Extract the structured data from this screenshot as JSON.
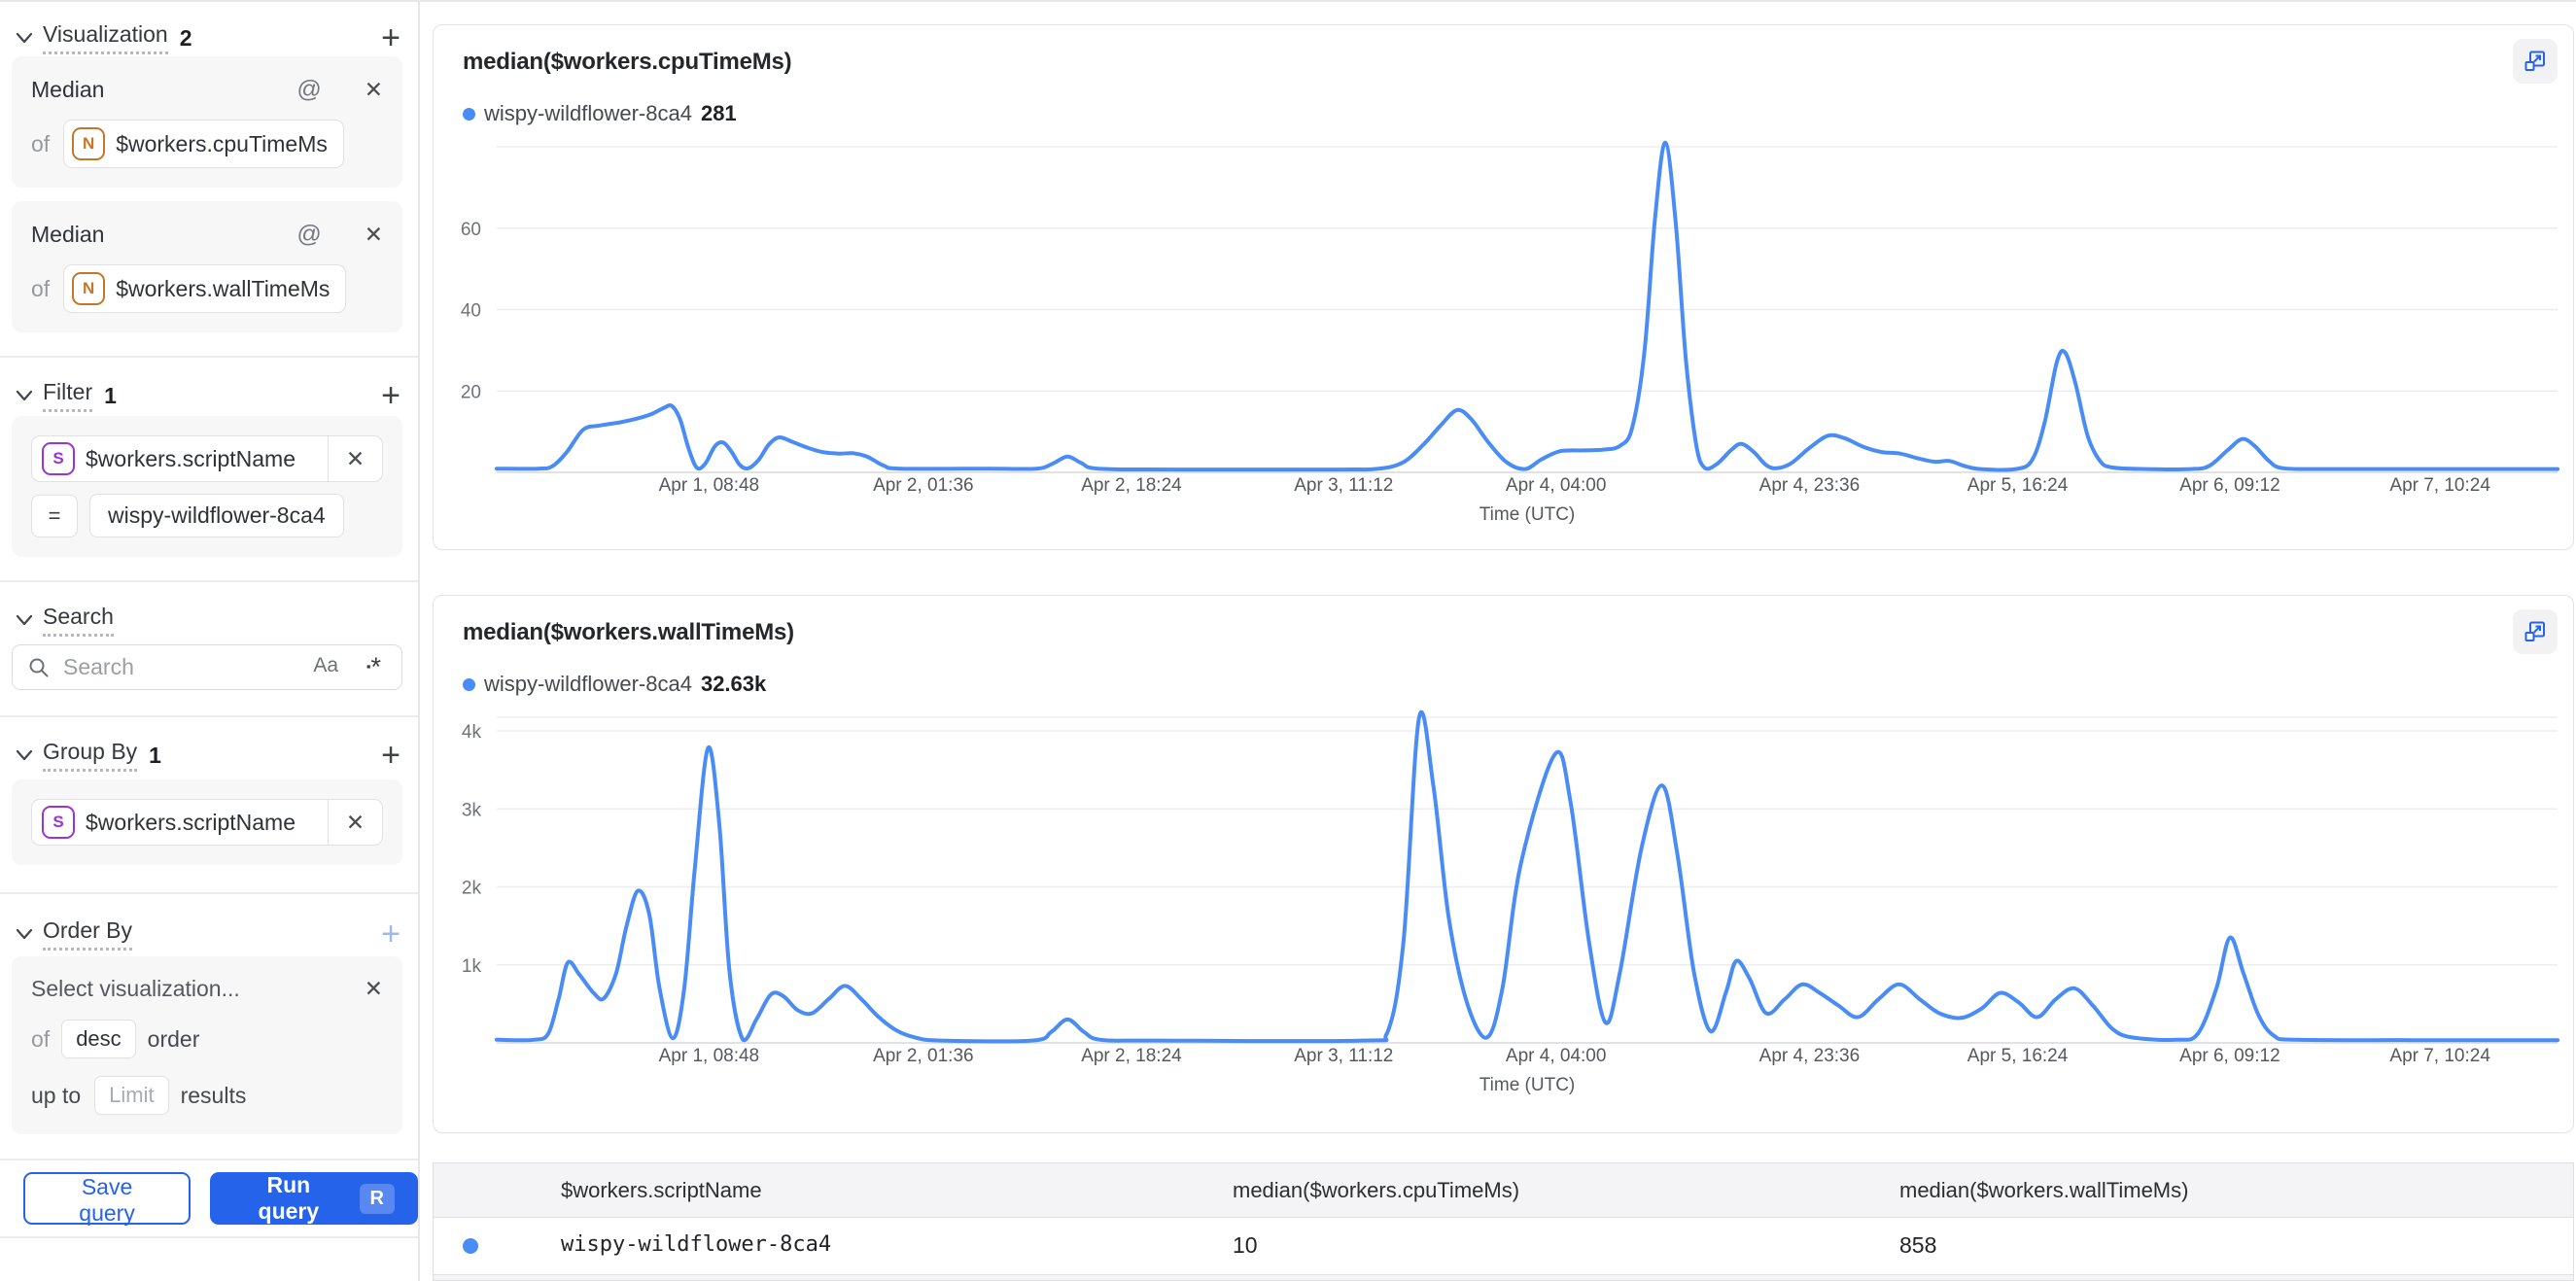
{
  "icons": {
    "plus": "+",
    "close": "✕",
    "at": "@",
    "equals": "="
  },
  "colors": {
    "accent_blue": "#2563eb",
    "line_blue": "#4a8cf6",
    "grid": "#ededef",
    "baseline": "#e2e2e5"
  },
  "sidebar": {
    "visualization": {
      "title": "Visualization",
      "count": "2",
      "cards": [
        {
          "name": "Median",
          "of": "of",
          "badge": "N",
          "field": "$workers.cpuTimeMs"
        },
        {
          "name": "Median",
          "of": "of",
          "badge": "N",
          "field": "$workers.wallTimeMs"
        }
      ]
    },
    "filter": {
      "title": "Filter",
      "count": "1",
      "badge": "S",
      "field": "$workers.scriptName",
      "operator": "=",
      "value": "wispy-wildflower-8ca4"
    },
    "search": {
      "title": "Search",
      "placeholder": "Search",
      "match_case": "Aa",
      "regex_square": "▪",
      "regex_star": "*"
    },
    "group_by": {
      "title": "Group By",
      "count": "1",
      "badge": "S",
      "field": "$workers.scriptName"
    },
    "order_by": {
      "title": "Order By",
      "placeholder": "Select visualization...",
      "of": "of",
      "direction": "desc",
      "order_word": "order",
      "up_to": "up to",
      "limit_placeholder": "Limit",
      "results_word": "results"
    },
    "footer": {
      "save": "Save query",
      "run": "Run query",
      "shortcut": "R"
    }
  },
  "chart_data": [
    {
      "type": "line",
      "title": "median($workers.cpuTimeMs)",
      "legend": {
        "series": "wispy-wildflower-8ca4",
        "value": "281"
      },
      "xlabel": "Time (UTC)",
      "ytop": 80,
      "yticks": [
        {
          "v": 20,
          "label": "20"
        },
        {
          "v": 40,
          "label": "40"
        },
        {
          "v": 60,
          "label": "60"
        }
      ],
      "xticks": [
        {
          "f": 0.103,
          "label": "Apr 1, 08:48"
        },
        {
          "f": 0.207,
          "label": "Apr 2, 01:36"
        },
        {
          "f": 0.308,
          "label": "Apr 2, 18:24"
        },
        {
          "f": 0.411,
          "label": "Apr 3, 11:12"
        },
        {
          "f": 0.514,
          "label": "Apr 4, 04:00"
        },
        {
          "f": 0.637,
          "label": "Apr 4, 23:36"
        },
        {
          "f": 0.738,
          "label": "Apr 5, 16:24"
        },
        {
          "f": 0.841,
          "label": "Apr 6, 09:12"
        },
        {
          "f": 0.943,
          "label": "Apr 7, 10:24"
        }
      ],
      "points": [
        [
          0,
          0.9
        ],
        [
          0.02,
          0.9
        ],
        [
          0.027,
          1.5
        ],
        [
          0.034,
          5
        ],
        [
          0.042,
          10.5
        ],
        [
          0.05,
          11.5
        ],
        [
          0.06,
          12.3
        ],
        [
          0.068,
          13.2
        ],
        [
          0.075,
          14.3
        ],
        [
          0.081,
          15.8
        ],
        [
          0.085,
          16.3
        ],
        [
          0.089,
          13
        ],
        [
          0.093,
          6
        ],
        [
          0.097,
          1.2
        ],
        [
          0.101,
          2
        ],
        [
          0.106,
          6.5
        ],
        [
          0.11,
          7.3
        ],
        [
          0.114,
          5
        ],
        [
          0.118,
          1.8
        ],
        [
          0.122,
          1
        ],
        [
          0.127,
          3
        ],
        [
          0.132,
          6.8
        ],
        [
          0.137,
          8.6
        ],
        [
          0.143,
          7.6
        ],
        [
          0.15,
          6.2
        ],
        [
          0.158,
          5
        ],
        [
          0.166,
          4.6
        ],
        [
          0.173,
          4.7
        ],
        [
          0.18,
          3.8
        ],
        [
          0.188,
          1.6
        ],
        [
          0.196,
          0.9
        ],
        [
          0.24,
          0.9
        ],
        [
          0.262,
          0.9
        ],
        [
          0.27,
          2.2
        ],
        [
          0.277,
          3.9
        ],
        [
          0.284,
          2.2
        ],
        [
          0.292,
          0.9
        ],
        [
          0.33,
          0.7
        ],
        [
          0.41,
          0.7
        ],
        [
          0.428,
          0.9
        ],
        [
          0.44,
          2.5
        ],
        [
          0.45,
          7
        ],
        [
          0.458,
          11.5
        ],
        [
          0.466,
          15.3
        ],
        [
          0.473,
          13
        ],
        [
          0.481,
          7.5
        ],
        [
          0.49,
          2.5
        ],
        [
          0.499,
          0.8
        ],
        [
          0.507,
          3.2
        ],
        [
          0.516,
          5.2
        ],
        [
          0.527,
          5.4
        ],
        [
          0.537,
          5.6
        ],
        [
          0.545,
          6.5
        ],
        [
          0.551,
          11
        ],
        [
          0.557,
          30
        ],
        [
          0.562,
          62
        ],
        [
          0.567,
          81
        ],
        [
          0.572,
          62
        ],
        [
          0.577,
          28
        ],
        [
          0.582,
          7
        ],
        [
          0.586,
          1.2
        ],
        [
          0.592,
          2
        ],
        [
          0.599,
          5.5
        ],
        [
          0.604,
          7
        ],
        [
          0.61,
          5
        ],
        [
          0.616,
          1.8
        ],
        [
          0.621,
          1
        ],
        [
          0.628,
          2.2
        ],
        [
          0.637,
          6
        ],
        [
          0.646,
          9
        ],
        [
          0.654,
          8.4
        ],
        [
          0.663,
          6.3
        ],
        [
          0.672,
          5
        ],
        [
          0.681,
          4.6
        ],
        [
          0.69,
          3.4
        ],
        [
          0.698,
          2.6
        ],
        [
          0.705,
          2.8
        ],
        [
          0.712,
          1.6
        ],
        [
          0.72,
          0.8
        ],
        [
          0.737,
          0.8
        ],
        [
          0.745,
          3
        ],
        [
          0.751,
          12
        ],
        [
          0.757,
          27
        ],
        [
          0.761,
          29.5
        ],
        [
          0.766,
          22
        ],
        [
          0.772,
          9
        ],
        [
          0.778,
          2.8
        ],
        [
          0.784,
          1.2
        ],
        [
          0.8,
          0.8
        ],
        [
          0.822,
          0.8
        ],
        [
          0.831,
          1.6
        ],
        [
          0.84,
          5.5
        ],
        [
          0.847,
          8.2
        ],
        [
          0.853,
          6.5
        ],
        [
          0.86,
          2.8
        ],
        [
          0.867,
          1
        ],
        [
          0.89,
          0.8
        ],
        [
          0.94,
          0.8
        ],
        [
          1,
          0.8
        ]
      ]
    },
    {
      "type": "line",
      "title": "median($workers.wallTimeMs)",
      "legend": {
        "series": "wispy-wildflower-8ca4",
        "value": "32.63k"
      },
      "xlabel": "Time (UTC)",
      "ytop": 4175,
      "yticks": [
        {
          "v": 1000,
          "label": "1k"
        },
        {
          "v": 2000,
          "label": "2k"
        },
        {
          "v": 3000,
          "label": "3k"
        },
        {
          "v": 4000,
          "label": "4k"
        }
      ],
      "xticks": [
        {
          "f": 0.103,
          "label": "Apr 1, 08:48"
        },
        {
          "f": 0.207,
          "label": "Apr 2, 01:36"
        },
        {
          "f": 0.308,
          "label": "Apr 2, 18:24"
        },
        {
          "f": 0.411,
          "label": "Apr 3, 11:12"
        },
        {
          "f": 0.514,
          "label": "Apr 4, 04:00"
        },
        {
          "f": 0.637,
          "label": "Apr 4, 23:36"
        },
        {
          "f": 0.738,
          "label": "Apr 5, 16:24"
        },
        {
          "f": 0.841,
          "label": "Apr 6, 09:12"
        },
        {
          "f": 0.943,
          "label": "Apr 7, 10:24"
        }
      ],
      "points": [
        [
          0,
          40
        ],
        [
          0.018,
          40
        ],
        [
          0.025,
          120
        ],
        [
          0.03,
          560
        ],
        [
          0.0345,
          1030
        ],
        [
          0.04,
          880
        ],
        [
          0.047,
          640
        ],
        [
          0.052,
          570
        ],
        [
          0.058,
          900
        ],
        [
          0.063,
          1500
        ],
        [
          0.0685,
          1950
        ],
        [
          0.074,
          1650
        ],
        [
          0.079,
          700
        ],
        [
          0.0855,
          60
        ],
        [
          0.091,
          700
        ],
        [
          0.096,
          2200
        ],
        [
          0.1025,
          3780
        ],
        [
          0.108,
          2800
        ],
        [
          0.113,
          900
        ],
        [
          0.1195,
          40
        ],
        [
          0.126,
          300
        ],
        [
          0.133,
          620
        ],
        [
          0.139,
          600
        ],
        [
          0.146,
          420
        ],
        [
          0.153,
          380
        ],
        [
          0.161,
          560
        ],
        [
          0.169,
          730
        ],
        [
          0.177,
          560
        ],
        [
          0.185,
          340
        ],
        [
          0.194,
          160
        ],
        [
          0.203,
          70
        ],
        [
          0.215,
          30
        ],
        [
          0.26,
          30
        ],
        [
          0.269,
          140
        ],
        [
          0.277,
          300
        ],
        [
          0.285,
          140
        ],
        [
          0.293,
          40
        ],
        [
          0.32,
          30
        ],
        [
          0.42,
          30
        ],
        [
          0.432,
          120
        ],
        [
          0.44,
          1300
        ],
        [
          0.4475,
          4160
        ],
        [
          0.4545,
          3300
        ],
        [
          0.462,
          1600
        ],
        [
          0.471,
          500
        ],
        [
          0.4805,
          70
        ],
        [
          0.488,
          700
        ],
        [
          0.497,
          2300
        ],
        [
          0.5135,
          3700
        ],
        [
          0.521,
          3100
        ],
        [
          0.53,
          1300
        ],
        [
          0.538,
          260
        ],
        [
          0.545,
          900
        ],
        [
          0.5555,
          2500
        ],
        [
          0.5655,
          3300
        ],
        [
          0.573,
          2400
        ],
        [
          0.581,
          900
        ],
        [
          0.589,
          150
        ],
        [
          0.5965,
          650
        ],
        [
          0.6015,
          1050
        ],
        [
          0.608,
          820
        ],
        [
          0.616,
          380
        ],
        [
          0.625,
          560
        ],
        [
          0.6335,
          750
        ],
        [
          0.642,
          640
        ],
        [
          0.651,
          480
        ],
        [
          0.6605,
          330
        ],
        [
          0.6705,
          560
        ],
        [
          0.6805,
          750
        ],
        [
          0.6905,
          560
        ],
        [
          0.7,
          380
        ],
        [
          0.7105,
          320
        ],
        [
          0.7205,
          440
        ],
        [
          0.7295,
          640
        ],
        [
          0.7385,
          520
        ],
        [
          0.7475,
          330
        ],
        [
          0.7565,
          560
        ],
        [
          0.7655,
          700
        ],
        [
          0.7745,
          480
        ],
        [
          0.784,
          180
        ],
        [
          0.7935,
          70
        ],
        [
          0.8155,
          40
        ],
        [
          0.8255,
          120
        ],
        [
          0.8345,
          700
        ],
        [
          0.841,
          1350
        ],
        [
          0.8475,
          900
        ],
        [
          0.855,
          350
        ],
        [
          0.8625,
          90
        ],
        [
          0.8735,
          40
        ],
        [
          0.93,
          35
        ],
        [
          1,
          35
        ]
      ]
    }
  ],
  "table": {
    "headers": [
      "$workers.scriptName",
      "median($workers.cpuTimeMs)",
      "median($workers.wallTimeMs)"
    ],
    "rows": [
      {
        "name": "wispy-wildflower-8ca4",
        "cpu": "10",
        "wall": "858"
      }
    ]
  }
}
